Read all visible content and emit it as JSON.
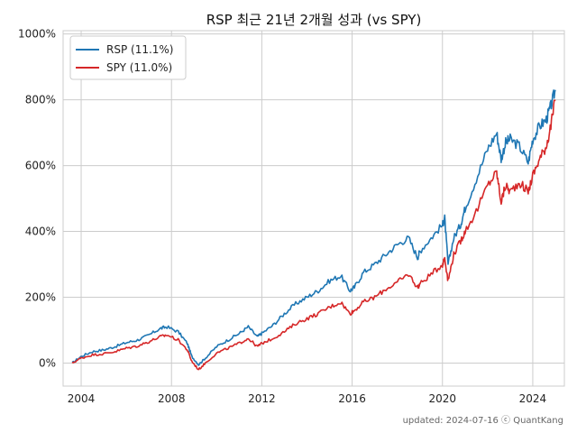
{
  "chart_data": {
    "type": "line",
    "title": "RSP 최근 21년 2개월 성과 (vs SPY)",
    "xlabel": "",
    "ylabel": "",
    "x_ticks": [
      "2004",
      "2008",
      "2012",
      "2016",
      "2020",
      "2024"
    ],
    "y_ticks": [
      "0%",
      "200%",
      "400%",
      "600%",
      "800%",
      "1000%"
    ],
    "xlim": [
      2003.2,
      2025.4
    ],
    "ylim": [
      -70,
      1010
    ],
    "grid": true,
    "legend_position": "top-left",
    "series": [
      {
        "name": "RSP (11.1%)",
        "color": "#1f77b4",
        "x": [
          2003.6,
          2004.0,
          2004.5,
          2005.0,
          2005.5,
          2006.0,
          2006.5,
          2007.0,
          2007.5,
          2007.8,
          2008.3,
          2008.7,
          2008.9,
          2009.2,
          2009.5,
          2010.0,
          2010.5,
          2011.0,
          2011.4,
          2011.8,
          2012.0,
          2012.5,
          2013.0,
          2013.5,
          2014.0,
          2014.5,
          2015.0,
          2015.5,
          2015.9,
          2016.1,
          2016.5,
          2017.0,
          2017.5,
          2018.0,
          2018.5,
          2018.9,
          2019.0,
          2019.5,
          2020.0,
          2020.1,
          2020.25,
          2020.5,
          2020.8,
          2021.0,
          2021.5,
          2022.0,
          2022.4,
          2022.6,
          2022.8,
          2023.0,
          2023.4,
          2023.8,
          2024.0,
          2024.3,
          2024.6,
          2024.8,
          2025.0
        ],
        "values": [
          0,
          20,
          35,
          40,
          50,
          62,
          70,
          85,
          105,
          110,
          95,
          60,
          20,
          -5,
          15,
          50,
          70,
          90,
          110,
          80,
          90,
          115,
          150,
          180,
          200,
          220,
          250,
          265,
          220,
          230,
          275,
          300,
          330,
          360,
          380,
          320,
          340,
          380,
          420,
          440,
          300,
          380,
          420,
          470,
          560,
          650,
          700,
          620,
          670,
          680,
          660,
          610,
          680,
          720,
          740,
          780,
          830
        ]
      },
      {
        "name": "SPY (11.0%)",
        "color": "#d62728",
        "x": [
          2003.6,
          2004.0,
          2004.5,
          2005.0,
          2005.5,
          2006.0,
          2006.5,
          2007.0,
          2007.5,
          2007.8,
          2008.3,
          2008.7,
          2008.9,
          2009.2,
          2009.5,
          2010.0,
          2010.5,
          2011.0,
          2011.4,
          2011.8,
          2012.0,
          2012.5,
          2013.0,
          2013.5,
          2014.0,
          2014.5,
          2015.0,
          2015.5,
          2015.9,
          2016.1,
          2016.5,
          2017.0,
          2017.5,
          2018.0,
          2018.5,
          2018.9,
          2019.0,
          2019.5,
          2020.0,
          2020.1,
          2020.25,
          2020.5,
          2020.8,
          2021.0,
          2021.5,
          2022.0,
          2022.4,
          2022.6,
          2022.8,
          2023.0,
          2023.4,
          2023.8,
          2024.0,
          2024.3,
          2024.6,
          2024.8,
          2025.0
        ],
        "values": [
          0,
          15,
          25,
          28,
          35,
          45,
          52,
          65,
          80,
          85,
          70,
          40,
          5,
          -20,
          0,
          30,
          45,
          60,
          75,
          50,
          60,
          75,
          95,
          120,
          135,
          150,
          170,
          185,
          150,
          160,
          185,
          200,
          225,
          245,
          270,
          230,
          240,
          270,
          300,
          320,
          250,
          330,
          370,
          400,
          460,
          540,
          580,
          490,
          540,
          520,
          550,
          520,
          570,
          620,
          660,
          720,
          800
        ]
      }
    ]
  },
  "footer": {
    "text": "updated: 2024-07-16 ⓒ QuantKang"
  }
}
